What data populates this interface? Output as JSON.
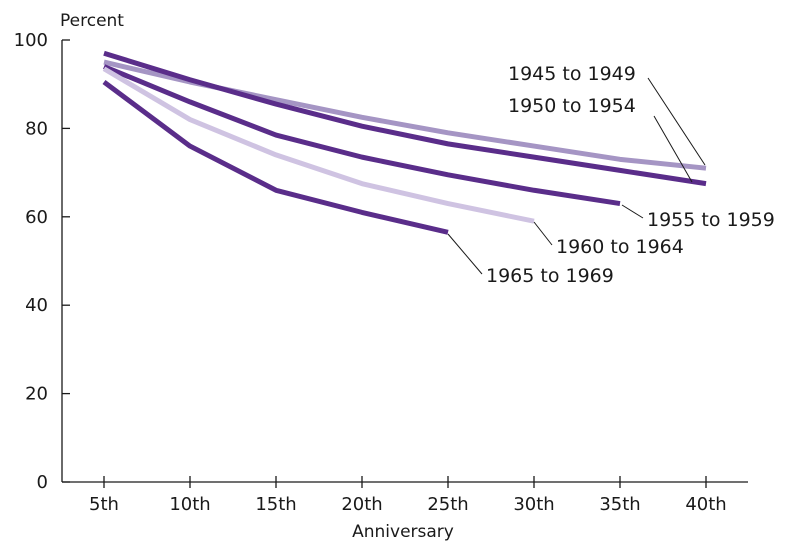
{
  "chart_data": {
    "type": "line",
    "ylabel": "Percent",
    "xlabel": "Anniversary",
    "categories": [
      "5th",
      "10th",
      "15th",
      "20th",
      "25th",
      "30th",
      "35th",
      "40th"
    ],
    "ylim": [
      0,
      100
    ],
    "yticks": [
      0,
      20,
      40,
      60,
      80,
      100
    ],
    "grid": false,
    "series": [
      {
        "name": "1945 to 1949",
        "color": "#a595c4",
        "values": [
          95,
          90.5,
          86.5,
          82.5,
          79,
          76,
          73,
          71
        ]
      },
      {
        "name": "1950 to 1954",
        "color": "#5a2d8a",
        "values": [
          97,
          91,
          85.5,
          80.5,
          76.5,
          73.5,
          70.5,
          67.5
        ]
      },
      {
        "name": "1955 to 1959",
        "color": "#5a2d8a",
        "values": [
          94,
          86,
          78.5,
          73.5,
          69.5,
          66,
          63,
          null
        ]
      },
      {
        "name": "1960 to 1964",
        "color": "#cfc3e2",
        "values": [
          93.5,
          82,
          74,
          67.5,
          63,
          59,
          null,
          null
        ]
      },
      {
        "name": "1965 to 1969",
        "color": "#5a2d8a",
        "values": [
          90.5,
          76,
          66,
          61,
          56.5,
          null,
          null,
          null
        ]
      }
    ]
  }
}
